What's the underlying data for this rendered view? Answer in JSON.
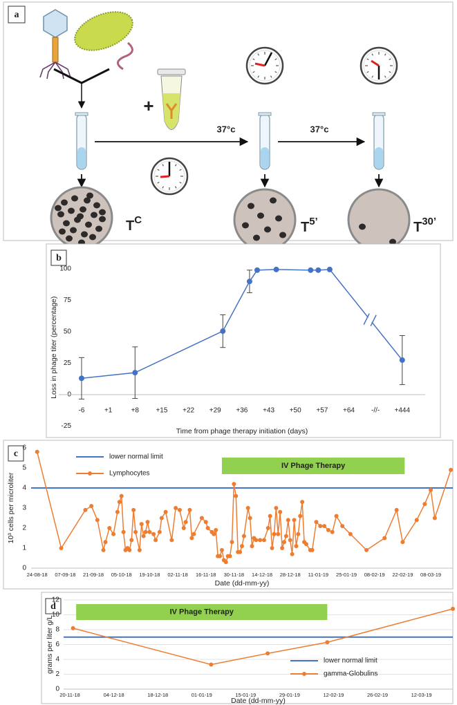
{
  "diagram": {
    "label": "a",
    "plus": "+",
    "temperature_1": "37°c",
    "temperature_2": "37°c",
    "plates": [
      {
        "base": "T",
        "sup": "C"
      },
      {
        "base": "T",
        "sup": "5’"
      },
      {
        "base": "T",
        "sup": "30’"
      }
    ]
  },
  "chart_data": [
    {
      "type": "line",
      "panel_label": "b",
      "xlabel": "Time from phage therapy initiation (days)",
      "ylabel": "Loss in phage titer (percentage)",
      "x": [
        -6,
        8,
        31,
        38,
        40,
        45,
        54,
        56,
        59,
        444
      ],
      "series": [
        {
          "color": "#4472c4",
          "values": [
            13,
            17.5,
            50.5,
            90,
            99,
            99.5,
            99,
            99,
            99.5,
            27.5
          ],
          "errors": [
            16.5,
            20.5,
            13,
            9,
            null,
            null,
            null,
            null,
            null,
            19.5
          ]
        }
      ],
      "xlim": [
        -6,
        444
      ],
      "xticks": [
        -6,
        {
          "value": 1,
          "label": "+1"
        },
        {
          "value": 8,
          "label": "+8"
        },
        {
          "value": 15,
          "label": "+15"
        },
        {
          "value": 22,
          "label": "+22"
        },
        {
          "value": 29,
          "label": "+29"
        },
        {
          "value": 36,
          "label": "+36"
        },
        {
          "value": 43,
          "label": "+43"
        },
        {
          "value": 50,
          "label": "+50"
        },
        {
          "value": 57,
          "label": "+57"
        },
        {
          "value": 64,
          "label": "+64"
        },
        {
          "value": 444,
          "label": "+444"
        }
      ],
      "x_break_label": "-//-",
      "ylim": [
        -25,
        100
      ],
      "yticks": [
        -25,
        0,
        25,
        50,
        75,
        100
      ],
      "grid": false
    },
    {
      "type": "line",
      "panel_label": "c",
      "xlabel": "Date (dd-mm-yy)",
      "ylabel": "10³ cells per microliter",
      "legend": "upper left",
      "x": [
        "24-08-18",
        "05-09-18",
        "17-09-18",
        "20-09-18",
        "23-09-18",
        "26-09-18",
        "27-09-18",
        "29-09-18",
        "01-10-18",
        "03-10-18",
        "04-10-18",
        "05-10-18",
        "06-10-18",
        "07-10-18",
        "08-10-18",
        "09-10-18",
        "10-10-18",
        "11-10-18",
        "12-10-18",
        "14-10-18",
        "15-10-18",
        "16-10-18",
        "17-10-18",
        "18-10-18",
        "19-10-18",
        "21-10-18",
        "22-10-18",
        "24-10-18",
        "25-10-18",
        "27-10-18",
        "30-10-18",
        "01-11-18",
        "03-11-18",
        "05-11-18",
        "06-11-18",
        "08-11-18",
        "09-11-18",
        "10-11-18",
        "14-11-18",
        "16-11-18",
        "17-11-18",
        "19-11-18",
        "20-11-18",
        "21-11-18",
        "22-11-18",
        "23-11-18",
        "24-11-18",
        "25-11-18",
        "26-11-18",
        "27-11-18",
        "28-11-18",
        "29-11-18",
        "30-11-18",
        "01-12-18",
        "02-12-18",
        "03-12-18",
        "04-12-18",
        "05-12-18",
        "07-12-18",
        "08-12-18",
        "09-12-18",
        "10-12-18",
        "11-12-18",
        "13-12-18",
        "15-12-18",
        "17-12-18",
        "18-12-18",
        "19-12-18",
        "20-12-18",
        "21-12-18",
        "22-12-18",
        "23-12-18",
        "24-12-18",
        "25-12-18",
        "26-12-18",
        "27-12-18",
        "28-12-18",
        "29-12-18",
        "30-12-18",
        "31-12-18",
        "01-01-19",
        "02-01-19",
        "03-01-19",
        "04-01-19",
        "05-01-19",
        "07-01-19",
        "08-01-19",
        "10-01-19",
        "12-01-19",
        "14-01-19",
        "16-01-19",
        "18-01-19",
        "20-01-19",
        "23-01-19",
        "27-01-19",
        "04-02-19",
        "13-02-19",
        "19-02-19",
        "22-02-19",
        "01-03-19",
        "05-03-19",
        "08-03-19",
        "10-03-19",
        "18-03-19"
      ],
      "series": [
        {
          "name": "Lymphocytes",
          "color": "#ed7d31",
          "values": [
            5.8,
            1.0,
            2.9,
            3.1,
            2.4,
            0.9,
            1.3,
            2.0,
            1.7,
            2.8,
            3.3,
            3.6,
            1.8,
            0.9,
            1.0,
            0.9,
            1.4,
            2.9,
            1.8,
            0.9,
            2.2,
            1.6,
            1.8,
            2.3,
            1.8,
            1.7,
            1.4,
            1.8,
            2.5,
            2.8,
            1.4,
            3.0,
            2.9,
            2.0,
            2.3,
            2.9,
            1.5,
            1.7,
            2.5,
            2.3,
            2.0,
            1.8,
            1.7,
            1.9,
            0.6,
            0.6,
            0.9,
            0.4,
            0.3,
            0.6,
            0.6,
            1.3,
            4.2,
            3.6,
            0.8,
            0.8,
            1.1,
            1.6,
            3.0,
            2.5,
            1.1,
            1.5,
            1.4,
            1.4,
            1.4,
            2.0,
            2.6,
            1.0,
            1.7,
            3.0,
            1.7,
            2.8,
            1.0,
            1.3,
            1.6,
            2.4,
            1.4,
            0.7,
            2.4,
            1.1,
            1.7,
            2.6,
            3.3,
            1.3,
            1.2,
            0.9,
            0.9,
            2.3,
            2.1,
            2.1,
            1.9,
            1.8,
            2.6,
            2.1,
            1.7,
            0.9,
            1.5,
            2.9,
            1.3,
            2.4,
            3.2,
            3.9,
            2.5,
            4.9
          ]
        }
      ],
      "reference_lines": [
        {
          "name": "lower normal limit",
          "value": 4,
          "color": "#4472c4"
        }
      ],
      "annotation": {
        "text": "IV Phage Therapy",
        "start": "24-11-18",
        "end": "23-02-19",
        "color": "#92d050"
      },
      "xlim": [
        "21-08-18",
        "19-03-19"
      ],
      "xticks": [
        "24-08-18",
        "07-09-18",
        "21-09-18",
        "05-10-18",
        "19-10-18",
        "02-11-18",
        "16-11-18",
        "30-11-18",
        "14-12-18",
        "28-12-18",
        "11-01-19",
        "25-01-19",
        "08-02-19",
        "22-02-19",
        "08-03-19"
      ],
      "ylim": [
        0,
        6
      ],
      "yticks": [
        0,
        1,
        2,
        3,
        4,
        5,
        6
      ],
      "grid": false
    },
    {
      "type": "line",
      "panel_label": "d",
      "xlabel": "Date (dd-mm-yy)",
      "ylabel": "grams per liter g/L",
      "legend": "lower right",
      "x": [
        "21-11-18",
        "04-01-19",
        "22-01-19",
        "10-02-19",
        "22-03-19"
      ],
      "series": [
        {
          "name": "gamma-Globulins",
          "color": "#ed7d31",
          "values": [
            8.2,
            3.3,
            4.8,
            6.3,
            10.8
          ]
        }
      ],
      "reference_lines": [
        {
          "name": "lower normal limit",
          "value": 7,
          "color": "#4472c4"
        }
      ],
      "annotation": {
        "text": "IV Phage Therapy",
        "start": "22-11-18",
        "end": "10-02-19",
        "color": "#92d050"
      },
      "xlim": [
        "18-11-18",
        "22-03-19"
      ],
      "xticks": [
        "20-11-18",
        "04-12-18",
        "18-12-18",
        "01-01-19",
        "15-01-19",
        "29-01-19",
        "12-02-19",
        "26-02-19",
        "12-03-19"
      ],
      "ylim": [
        0,
        12
      ],
      "yticks": [
        0,
        2,
        4,
        6,
        8,
        10,
        12
      ],
      "grid": true
    }
  ]
}
